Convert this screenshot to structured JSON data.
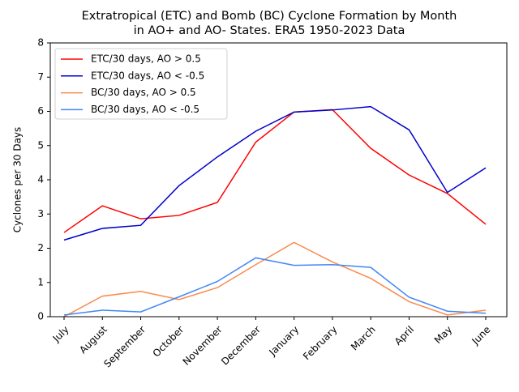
{
  "chart_data": {
    "type": "line",
    "title": [
      "Extratropical (ETC) and Bomb (BC) Cyclone Formation by Month",
      "in AO+ and AO- States. ERA5 1950-2023 Data"
    ],
    "ylabel": "Cyclones per 30 Days",
    "categories": [
      "July",
      "August",
      "September",
      "October",
      "November",
      "December",
      "January",
      "February",
      "March",
      "April",
      "May",
      "June"
    ],
    "series": [
      {
        "name": "ETC/30 days, AO > 0.5",
        "color": "#ff0000",
        "values": [
          2.46,
          3.24,
          2.86,
          2.96,
          3.34,
          5.1,
          5.98,
          6.05,
          4.92,
          4.14,
          3.6,
          2.7
        ]
      },
      {
        "name": "ETC/30 days, AO < -0.5",
        "color": "#0000cd",
        "values": [
          2.24,
          2.58,
          2.67,
          3.83,
          4.67,
          5.42,
          5.98,
          6.04,
          6.14,
          5.46,
          3.63,
          4.35
        ]
      },
      {
        "name": "BC/30 days, AO > 0.5",
        "color": "#f98b4c",
        "values": [
          0.0,
          0.6,
          0.74,
          0.5,
          0.85,
          1.52,
          2.17,
          1.6,
          1.12,
          0.44,
          0.05,
          0.19
        ]
      },
      {
        "name": "BC/30 days, AO < -0.5",
        "color": "#4287f5",
        "values": [
          0.05,
          0.19,
          0.14,
          0.58,
          1.03,
          1.72,
          1.5,
          1.52,
          1.44,
          0.57,
          0.16,
          0.1
        ]
      }
    ],
    "ylim": [
      0,
      8
    ],
    "yticks": [
      0,
      1,
      2,
      3,
      4,
      5,
      6,
      7,
      8
    ],
    "grid": false,
    "legend": "upper left"
  }
}
